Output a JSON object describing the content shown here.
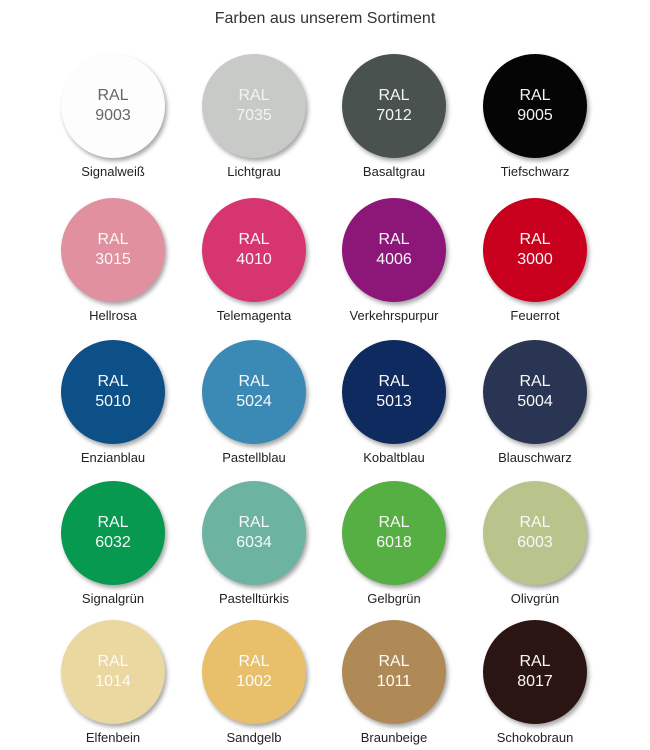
{
  "title": "Farben aus unserem Sortiment",
  "colors": [
    {
      "ral_label": "RAL",
      "code": "9003",
      "name": "Signalweiß",
      "color": "#fdfdfd",
      "text_color": "#666666"
    },
    {
      "ral_label": "RAL",
      "code": "7035",
      "name": "Lichtgrau",
      "color": "#c8cac7",
      "text_color": "#f4f4f4"
    },
    {
      "ral_label": "RAL",
      "code": "7012",
      "name": "Basaltgrau",
      "color": "#4a5250",
      "text_color": "#f4f4f4"
    },
    {
      "ral_label": "RAL",
      "code": "9005",
      "name": "Tiefschwarz",
      "color": "#050505",
      "text_color": "#f4f4f4"
    },
    {
      "ral_label": "RAL",
      "code": "3015",
      "name": "Hellrosa",
      "color": "#e0909f",
      "text_color": "#f8f8f8"
    },
    {
      "ral_label": "RAL",
      "code": "4010",
      "name": "Telemagenta",
      "color": "#d63570",
      "text_color": "#f8f8f8"
    },
    {
      "ral_label": "RAL",
      "code": "4006",
      "name": "Verkehrspurpur",
      "color": "#8c1779",
      "text_color": "#f8f8f8"
    },
    {
      "ral_label": "RAL",
      "code": "3000",
      "name": "Feuerrot",
      "color": "#c8001e",
      "text_color": "#f8f8f8"
    },
    {
      "ral_label": "RAL",
      "code": "5010",
      "name": "Enzianblau",
      "color": "#0d5088",
      "text_color": "#f8f8f8"
    },
    {
      "ral_label": "RAL",
      "code": "5024",
      "name": "Pastellblau",
      "color": "#3b8ab5",
      "text_color": "#f8f8f8"
    },
    {
      "ral_label": "RAL",
      "code": "5013",
      "name": "Kobaltblau",
      "color": "#0f2a5e",
      "text_color": "#f8f8f8"
    },
    {
      "ral_label": "RAL",
      "code": "5004",
      "name": "Blauschwarz",
      "color": "#2a3553",
      "text_color": "#f8f8f8"
    },
    {
      "ral_label": "RAL",
      "code": "6032",
      "name": "Signalgrün",
      "color": "#06994f",
      "text_color": "#f8f8f8"
    },
    {
      "ral_label": "RAL",
      "code": "6034",
      "name": "Pastelltürkis",
      "color": "#6cb3a2",
      "text_color": "#f8f8f8"
    },
    {
      "ral_label": "RAL",
      "code": "6018",
      "name": "Gelbgrün",
      "color": "#55af42",
      "text_color": "#f8f8f8"
    },
    {
      "ral_label": "RAL",
      "code": "6003",
      "name": "Olivgrün",
      "color": "#b8c48c",
      "text_color": "#f8f8f8"
    },
    {
      "ral_label": "RAL",
      "code": "1014",
      "name": "Elfenbein",
      "color": "#ebd7a0",
      "text_color": "#fbfbfb"
    },
    {
      "ral_label": "RAL",
      "code": "1002",
      "name": "Sandgelb",
      "color": "#e8c06c",
      "text_color": "#fbfbfb"
    },
    {
      "ral_label": "RAL",
      "code": "1011",
      "name": "Braunbeige",
      "color": "#b08a56",
      "text_color": "#fbfbfb"
    },
    {
      "ral_label": "RAL",
      "code": "8017",
      "name": "Schokobraun",
      "color": "#2b1513",
      "text_color": "#f8f8f8"
    }
  ]
}
